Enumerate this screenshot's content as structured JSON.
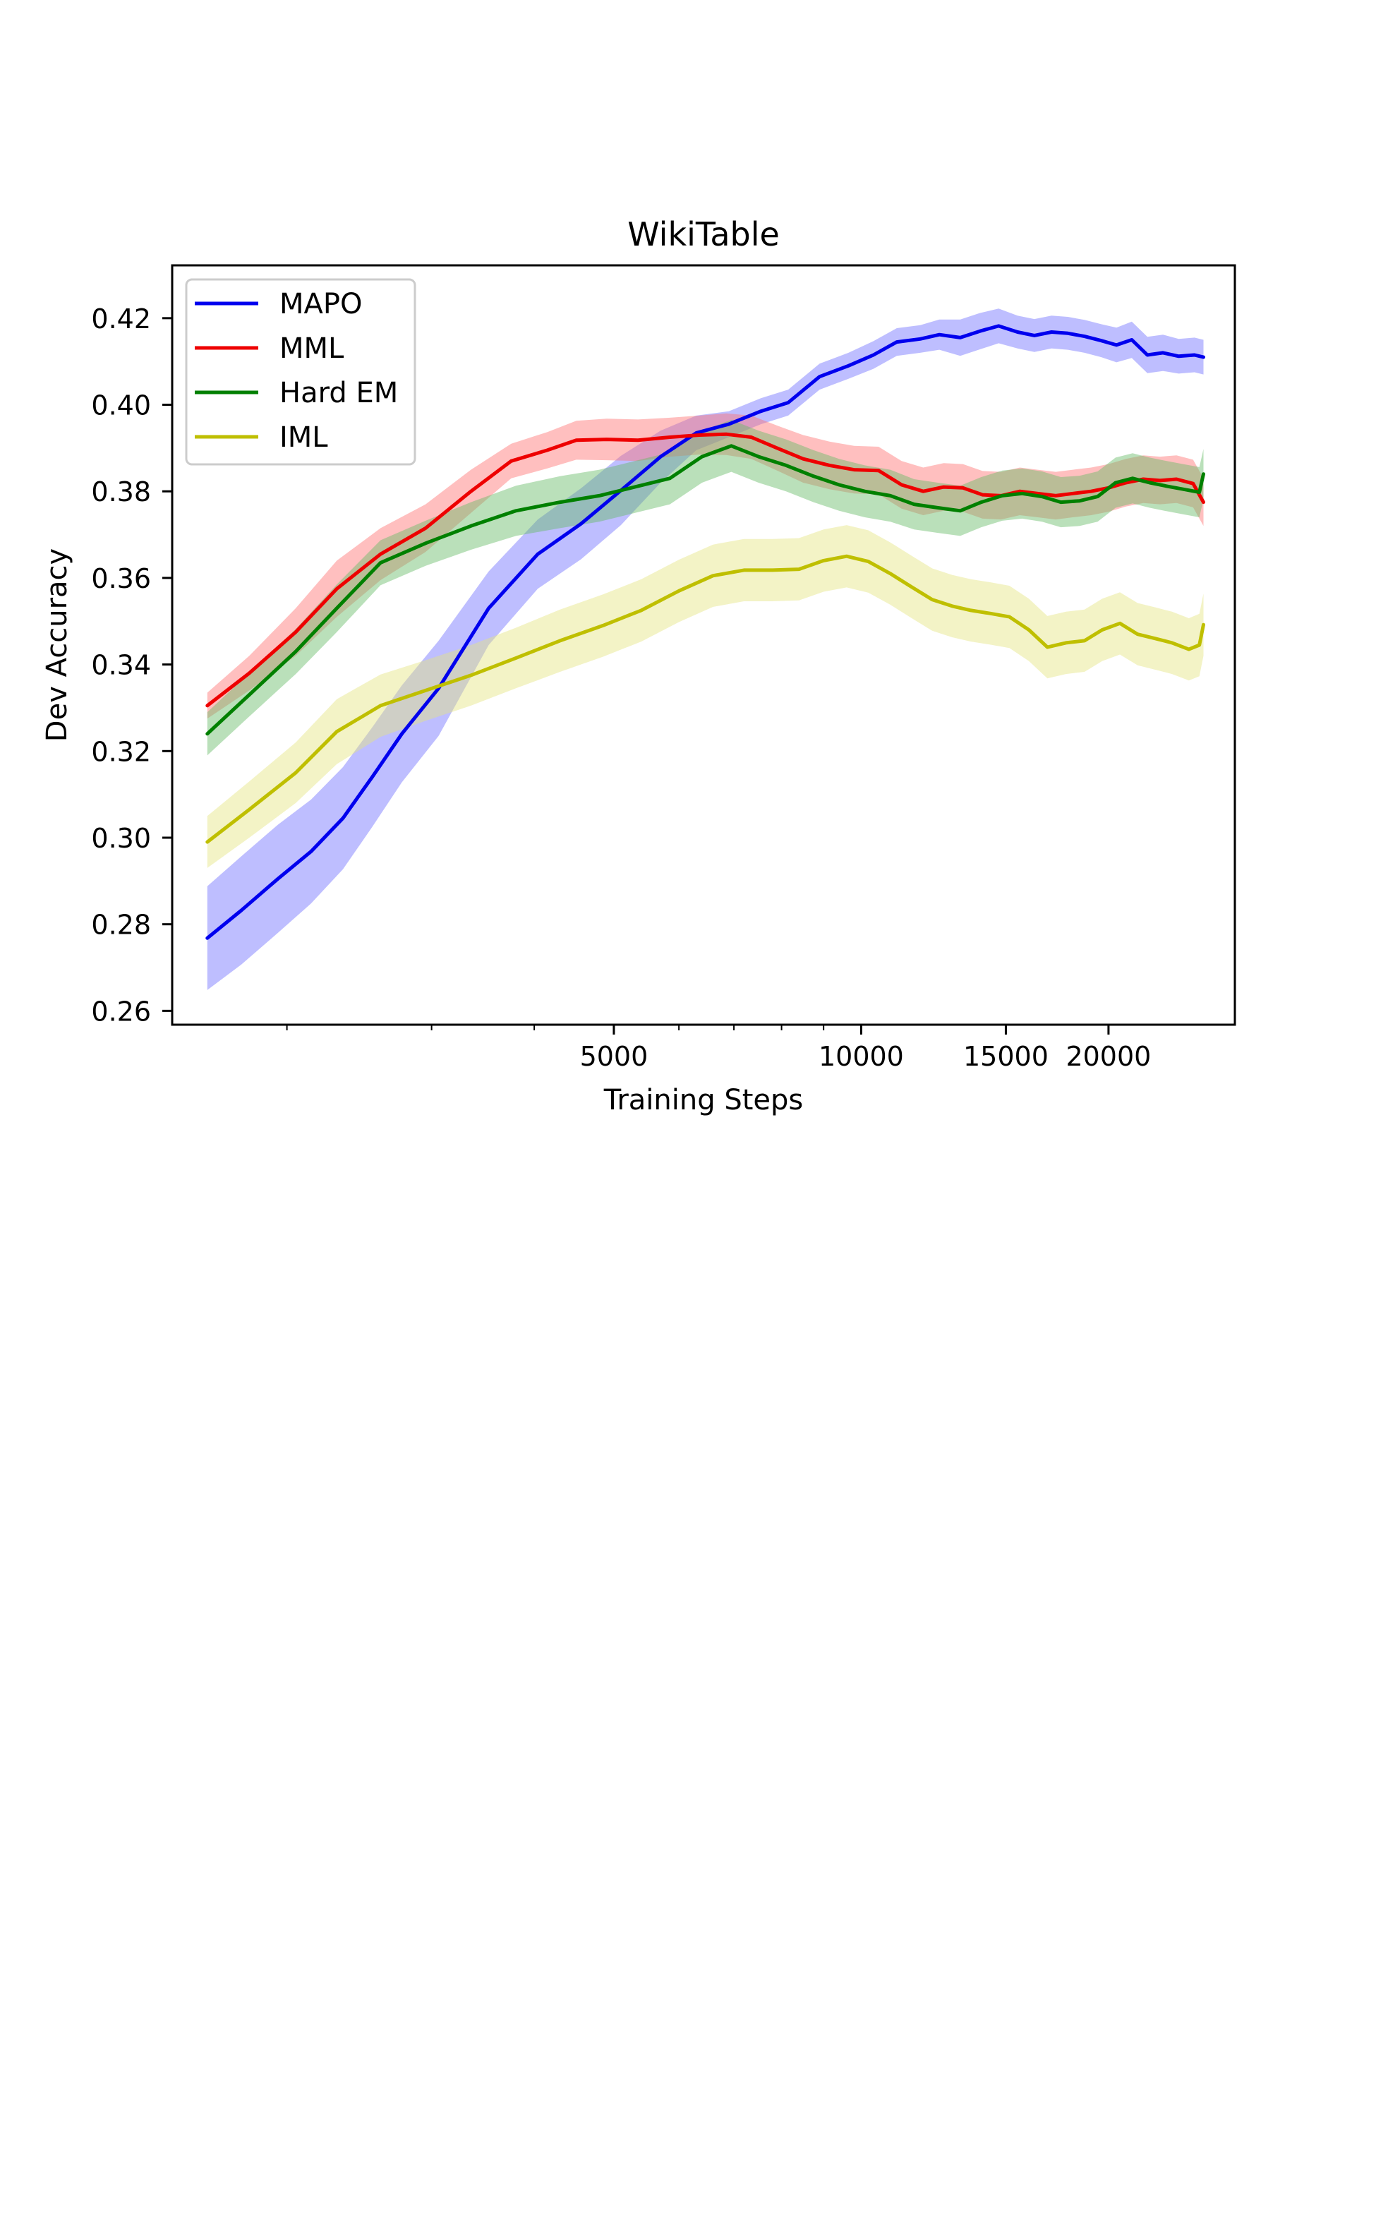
{
  "chart_data": {
    "type": "line",
    "title": "WikiTable",
    "xlabel": "Training Steps",
    "ylabel": "Dev Accuracy",
    "x_scale": "log",
    "xlim": [
      1450,
      28500
    ],
    "ylim": [
      0.2568,
      0.4322
    ],
    "y_ticks": [
      0.26,
      0.28,
      0.3,
      0.32,
      0.34,
      0.36,
      0.38,
      0.4,
      0.42
    ],
    "y_tick_labels": [
      "0.26",
      "0.28",
      "0.30",
      "0.32",
      "0.34",
      "0.36",
      "0.38",
      "0.40",
      "0.42"
    ],
    "x_major_ticks": [
      5000,
      10000,
      15000,
      20000
    ],
    "x_tick_labels": [
      "5000",
      "10000",
      "15000",
      "20000"
    ],
    "x_minor_ticks": [
      2000,
      3000,
      4000,
      6000,
      7000,
      8000,
      9000
    ],
    "legend_position": "upper-left",
    "grid": false,
    "series": [
      {
        "name": "MAPO",
        "color": "#0000ee",
        "band_color": "#6f6fff",
        "x": [
          1600,
          1760,
          1950,
          2140,
          2340,
          2540,
          2760,
          3060,
          3520,
          4040,
          4560,
          5100,
          5700,
          6300,
          6900,
          7550,
          8150,
          8900,
          9650,
          10350,
          11050,
          11800,
          12450,
          13200,
          13950,
          14700,
          15500,
          16250,
          17050,
          17850,
          18700,
          19600,
          20450,
          21350,
          22300,
          23300,
          24350,
          25450,
          26100
        ],
        "y": [
          0.2768,
          0.2832,
          0.2905,
          0.2968,
          0.3045,
          0.314,
          0.324,
          0.3345,
          0.353,
          0.3655,
          0.3725,
          0.3802,
          0.388,
          0.3935,
          0.3955,
          0.3985,
          0.4005,
          0.4065,
          0.409,
          0.4115,
          0.4145,
          0.4152,
          0.4162,
          0.4155,
          0.417,
          0.4182,
          0.4168,
          0.416,
          0.4168,
          0.4165,
          0.4158,
          0.4148,
          0.4138,
          0.415,
          0.4115,
          0.412,
          0.4112,
          0.4115,
          0.411
        ],
        "err": [
          0.012,
          0.0125,
          0.0125,
          0.012,
          0.0118,
          0.0115,
          0.0112,
          0.011,
          0.0085,
          0.008,
          0.0082,
          0.008,
          0.006,
          0.004,
          0.003,
          0.003,
          0.003,
          0.003,
          0.003,
          0.0032,
          0.0032,
          0.0032,
          0.0035,
          0.0042,
          0.0042,
          0.004,
          0.0038,
          0.0038,
          0.0038,
          0.0038,
          0.0038,
          0.0038,
          0.004,
          0.0042,
          0.0042,
          0.0042,
          0.004,
          0.004,
          0.004
        ]
      },
      {
        "name": "MML",
        "color": "#ee0000",
        "band_color": "#ff7070",
        "x": [
          1600,
          1800,
          2050,
          2300,
          2600,
          2950,
          3350,
          3750,
          4150,
          4500,
          4900,
          5350,
          5850,
          6350,
          6850,
          7350,
          7900,
          8500,
          9150,
          9800,
          10500,
          11200,
          11900,
          12600,
          13300,
          14050,
          14800,
          15600,
          16400,
          17250,
          18100,
          19050,
          20000,
          21000,
          22050,
          23100,
          24200,
          25350,
          26100
        ],
        "y": [
          0.3305,
          0.338,
          0.3475,
          0.3575,
          0.3655,
          0.3715,
          0.38,
          0.387,
          0.3895,
          0.3918,
          0.392,
          0.3918,
          0.3925,
          0.393,
          0.3932,
          0.3925,
          0.39,
          0.3875,
          0.386,
          0.385,
          0.3848,
          0.3815,
          0.38,
          0.381,
          0.3808,
          0.3792,
          0.379,
          0.38,
          0.3795,
          0.379,
          0.3795,
          0.38,
          0.3808,
          0.382,
          0.3828,
          0.3825,
          0.3828,
          0.3818,
          0.3775
        ],
        "err": [
          0.003,
          0.004,
          0.0055,
          0.0065,
          0.006,
          0.0055,
          0.005,
          0.004,
          0.0042,
          0.0045,
          0.0048,
          0.0048,
          0.0045,
          0.0045,
          0.0048,
          0.005,
          0.0052,
          0.0055,
          0.0055,
          0.0055,
          0.0055,
          0.0055,
          0.0055,
          0.0055,
          0.0055,
          0.0055,
          0.0055,
          0.0055,
          0.0055,
          0.0055,
          0.0055,
          0.0055,
          0.0055,
          0.0055,
          0.0055,
          0.0055,
          0.0055,
          0.0055,
          0.0055
        ]
      },
      {
        "name": "Hard EM",
        "color": "#008000",
        "band_color": "#66bb66",
        "x": [
          1600,
          1800,
          2050,
          2300,
          2600,
          2950,
          3350,
          3800,
          4300,
          4800,
          5300,
          5850,
          6400,
          6950,
          7500,
          8100,
          8750,
          9400,
          10100,
          10850,
          11600,
          12400,
          13200,
          14000,
          14850,
          15700,
          16600,
          17500,
          18450,
          19400,
          20400,
          21400,
          22450,
          23550,
          24650,
          25800,
          26100
        ],
        "y": [
          0.324,
          0.333,
          0.343,
          0.353,
          0.3635,
          0.368,
          0.372,
          0.3755,
          0.3775,
          0.379,
          0.381,
          0.383,
          0.388,
          0.3905,
          0.388,
          0.386,
          0.3835,
          0.3815,
          0.38,
          0.379,
          0.377,
          0.3762,
          0.3755,
          0.3775,
          0.379,
          0.3795,
          0.3788,
          0.3775,
          0.3778,
          0.3788,
          0.382,
          0.383,
          0.382,
          0.3812,
          0.3805,
          0.3798,
          0.384
        ],
        "err": [
          0.005,
          0.005,
          0.0052,
          0.0055,
          0.0052,
          0.0052,
          0.0055,
          0.0058,
          0.006,
          0.006,
          0.006,
          0.006,
          0.006,
          0.006,
          0.006,
          0.006,
          0.006,
          0.006,
          0.006,
          0.006,
          0.0058,
          0.0058,
          0.0058,
          0.0058,
          0.0058,
          0.0058,
          0.0058,
          0.0058,
          0.0058,
          0.0058,
          0.0058,
          0.0058,
          0.0058,
          0.0058,
          0.0058,
          0.0058,
          0.0058
        ]
      },
      {
        "name": "IML",
        "color": "#bfbf00",
        "band_color": "#e5e580",
        "x": [
          1600,
          1800,
          2050,
          2300,
          2600,
          2950,
          3350,
          3800,
          4300,
          4850,
          5400,
          6000,
          6600,
          7200,
          7800,
          8400,
          9000,
          9600,
          10200,
          10850,
          11500,
          12200,
          12900,
          13600,
          14350,
          15150,
          16000,
          16850,
          17750,
          18700,
          19650,
          20650,
          21700,
          22800,
          23900,
          25050,
          25800,
          26100
        ],
        "y": [
          0.299,
          0.3065,
          0.315,
          0.3245,
          0.3305,
          0.334,
          0.3375,
          0.3415,
          0.3455,
          0.349,
          0.3525,
          0.357,
          0.3605,
          0.3618,
          0.3618,
          0.362,
          0.364,
          0.365,
          0.3638,
          0.361,
          0.358,
          0.355,
          0.3535,
          0.3525,
          0.3518,
          0.351,
          0.348,
          0.344,
          0.345,
          0.3455,
          0.348,
          0.3495,
          0.347,
          0.346,
          0.345,
          0.3435,
          0.3445,
          0.3492
        ],
        "err": [
          0.006,
          0.0065,
          0.007,
          0.0075,
          0.0072,
          0.007,
          0.007,
          0.007,
          0.0072,
          0.0072,
          0.0072,
          0.0072,
          0.0072,
          0.0072,
          0.0072,
          0.0072,
          0.0072,
          0.0072,
          0.0072,
          0.0072,
          0.0072,
          0.0072,
          0.0072,
          0.0072,
          0.0072,
          0.0072,
          0.0072,
          0.0072,
          0.0072,
          0.0072,
          0.0072,
          0.0072,
          0.0072,
          0.0072,
          0.0072,
          0.0072,
          0.0072,
          0.0072
        ]
      }
    ]
  }
}
